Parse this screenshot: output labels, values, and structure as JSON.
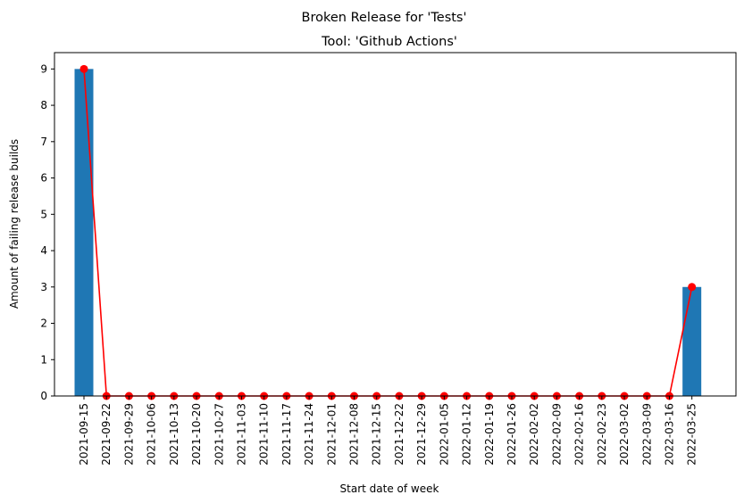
{
  "chart_data": {
    "type": "bar",
    "suptitle": "Broken Release for 'Tests'",
    "title": "Tool: 'Github Actions'",
    "xlabel": "Start date of week",
    "ylabel": "Amount of failing release builds",
    "categories": [
      "2021-09-15",
      "2021-09-22",
      "2021-09-29",
      "2021-10-06",
      "2021-10-13",
      "2021-10-20",
      "2021-10-27",
      "2021-11-03",
      "2021-11-10",
      "2021-11-17",
      "2021-11-24",
      "2021-12-01",
      "2021-12-08",
      "2021-12-15",
      "2021-12-22",
      "2021-12-29",
      "2022-01-05",
      "2022-01-12",
      "2022-01-19",
      "2022-01-26",
      "2022-02-02",
      "2022-02-09",
      "2022-02-16",
      "2022-02-23",
      "2022-03-02",
      "2022-03-09",
      "2022-03-16",
      "2022-03-25"
    ],
    "series": [
      {
        "type": "bar",
        "values": [
          9,
          0,
          0,
          0,
          0,
          0,
          0,
          0,
          0,
          0,
          0,
          0,
          0,
          0,
          0,
          0,
          0,
          0,
          0,
          0,
          0,
          0,
          0,
          0,
          0,
          0,
          0,
          3
        ]
      },
      {
        "type": "line",
        "values": [
          9,
          0,
          0,
          0,
          0,
          0,
          0,
          0,
          0,
          0,
          0,
          0,
          0,
          0,
          0,
          0,
          0,
          0,
          0,
          0,
          0,
          0,
          0,
          0,
          0,
          0,
          0,
          3
        ]
      }
    ],
    "ylim": [
      0,
      9.45
    ],
    "yticks": [
      0,
      1,
      2,
      3,
      4,
      5,
      6,
      7,
      8,
      9
    ],
    "grid": false,
    "colors": {
      "bar": "#1f77b4",
      "line": "#ff0000"
    }
  }
}
